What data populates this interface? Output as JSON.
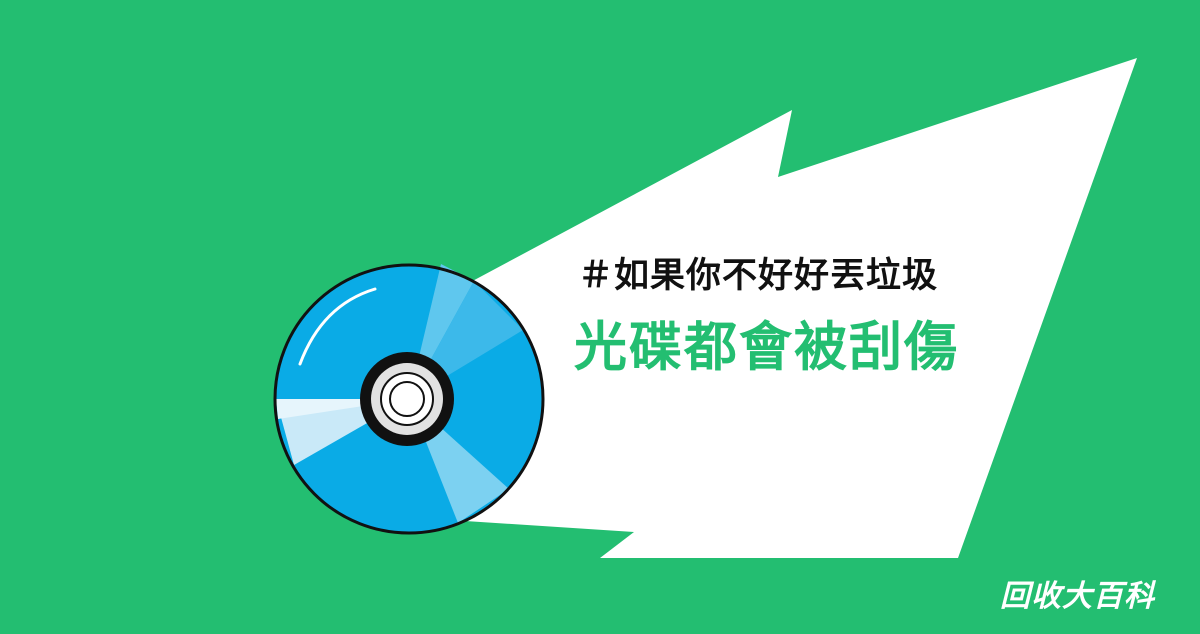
{
  "headline": {
    "hashtag": "＃如果你不好好丟垃圾",
    "title": "光碟都會被刮傷"
  },
  "brand": {
    "name": "回收大百科"
  },
  "colors": {
    "background": "#23BE71",
    "bubble": "#FFFFFF",
    "hashtag_text": "#111111",
    "title_text": "#23BE71",
    "brand_text": "#FFFFFF",
    "disc_blue": "#0AABE6",
    "disc_light": "#C9E9F8",
    "disc_outline": "#111111"
  },
  "icons": {
    "disc": "compact-disc-icon"
  }
}
